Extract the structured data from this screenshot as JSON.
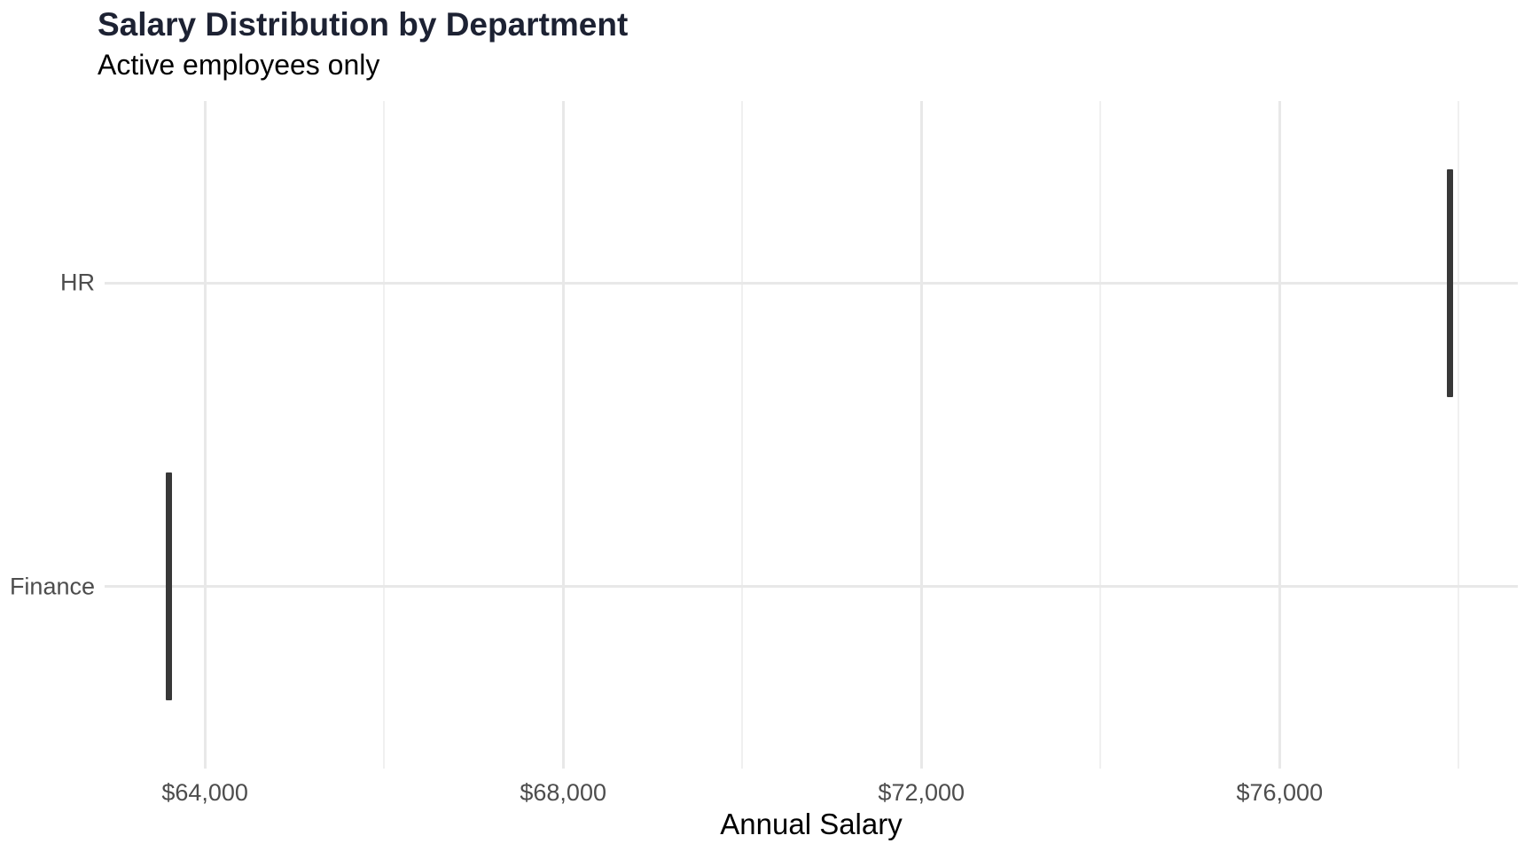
{
  "chart_data": {
    "type": "boxplot",
    "orientation": "horizontal",
    "title": "Salary Distribution by Department",
    "subtitle": "Active employees only",
    "xlabel": "Annual Salary",
    "ylabel": "",
    "categories": [
      "HR",
      "Finance"
    ],
    "series": [
      {
        "name": "HR",
        "min": 77900,
        "q1": 77900,
        "median": 77900,
        "q3": 77900,
        "max": 77900
      },
      {
        "name": "Finance",
        "min": 63600,
        "q1": 63600,
        "median": 63600,
        "q3": 63600,
        "max": 63600
      }
    ],
    "x_axis": {
      "min": 62880,
      "max": 78660,
      "major_ticks": [
        64000,
        68000,
        72000,
        76000
      ],
      "major_tick_labels": [
        "$64,000",
        "$68,000",
        "$72,000",
        "$76,000"
      ],
      "minor_ticks": [
        66000,
        70000,
        74000,
        78000
      ]
    },
    "grid": {
      "x_major": true,
      "x_minor": true,
      "y_major": true,
      "panel_border": false,
      "axis_ticks": false
    },
    "legend": "none",
    "box_width_fraction": 0.75
  },
  "colors": {
    "title": "#1D2233",
    "subtitle": "#000000",
    "axis_text": "#4D4D4D",
    "axis_title": "#000000",
    "grid_major": "#E8E8E8",
    "grid_minor": "#F0F0F0",
    "box": "#383838",
    "background": "#FFFFFF"
  }
}
